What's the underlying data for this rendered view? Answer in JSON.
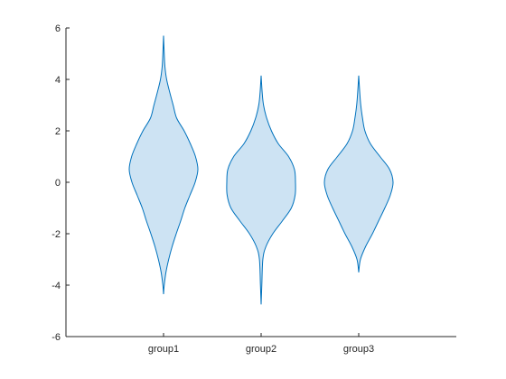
{
  "chart_data": {
    "type": "violin",
    "title": "",
    "xlabel": "",
    "ylabel": "",
    "categories": [
      "group1",
      "group2",
      "group3"
    ],
    "ylim": [
      -6,
      6
    ],
    "yticks": [
      -6,
      -4,
      -2,
      0,
      2,
      4,
      6
    ],
    "grid": false,
    "legend": "none",
    "colors": {
      "fill": "#cde3f3",
      "edge": "#0072bd",
      "axis": "#262626"
    },
    "series": [
      {
        "category": "group1",
        "min": -4.35,
        "max": 5.7,
        "profile": [
          [
            -4.35,
            0.0
          ],
          [
            -4.0,
            0.02
          ],
          [
            -3.5,
            0.07
          ],
          [
            -3.0,
            0.15
          ],
          [
            -2.5,
            0.25
          ],
          [
            -2.0,
            0.37
          ],
          [
            -1.5,
            0.5
          ],
          [
            -1.0,
            0.62
          ],
          [
            -0.5,
            0.77
          ],
          [
            0.0,
            0.92
          ],
          [
            0.5,
            1.0
          ],
          [
            1.0,
            0.93
          ],
          [
            1.5,
            0.78
          ],
          [
            2.0,
            0.6
          ],
          [
            2.5,
            0.38
          ],
          [
            3.0,
            0.28
          ],
          [
            3.5,
            0.18
          ],
          [
            4.0,
            0.09
          ],
          [
            4.5,
            0.04
          ],
          [
            5.0,
            0.02
          ],
          [
            5.7,
            0.0
          ]
        ]
      },
      {
        "category": "group2",
        "min": -4.75,
        "max": 4.15,
        "profile": [
          [
            -4.75,
            0.0
          ],
          [
            -4.0,
            0.02
          ],
          [
            -3.0,
            0.05
          ],
          [
            -2.5,
            0.14
          ],
          [
            -2.0,
            0.34
          ],
          [
            -1.5,
            0.62
          ],
          [
            -1.0,
            0.88
          ],
          [
            -0.5,
            0.99
          ],
          [
            0.0,
            1.0
          ],
          [
            0.5,
            0.97
          ],
          [
            1.0,
            0.8
          ],
          [
            1.5,
            0.5
          ],
          [
            2.0,
            0.3
          ],
          [
            2.5,
            0.16
          ],
          [
            3.0,
            0.07
          ],
          [
            3.5,
            0.03
          ],
          [
            4.15,
            0.0
          ]
        ]
      },
      {
        "category": "group3",
        "min": -3.5,
        "max": 4.15,
        "profile": [
          [
            -3.5,
            0.0
          ],
          [
            -3.0,
            0.05
          ],
          [
            -2.5,
            0.2
          ],
          [
            -2.0,
            0.4
          ],
          [
            -1.5,
            0.58
          ],
          [
            -1.0,
            0.76
          ],
          [
            -0.5,
            0.92
          ],
          [
            0.0,
            1.0
          ],
          [
            0.5,
            0.9
          ],
          [
            1.0,
            0.62
          ],
          [
            1.5,
            0.34
          ],
          [
            2.0,
            0.18
          ],
          [
            2.5,
            0.11
          ],
          [
            3.0,
            0.06
          ],
          [
            3.5,
            0.03
          ],
          [
            4.15,
            0.0
          ]
        ]
      }
    ]
  }
}
